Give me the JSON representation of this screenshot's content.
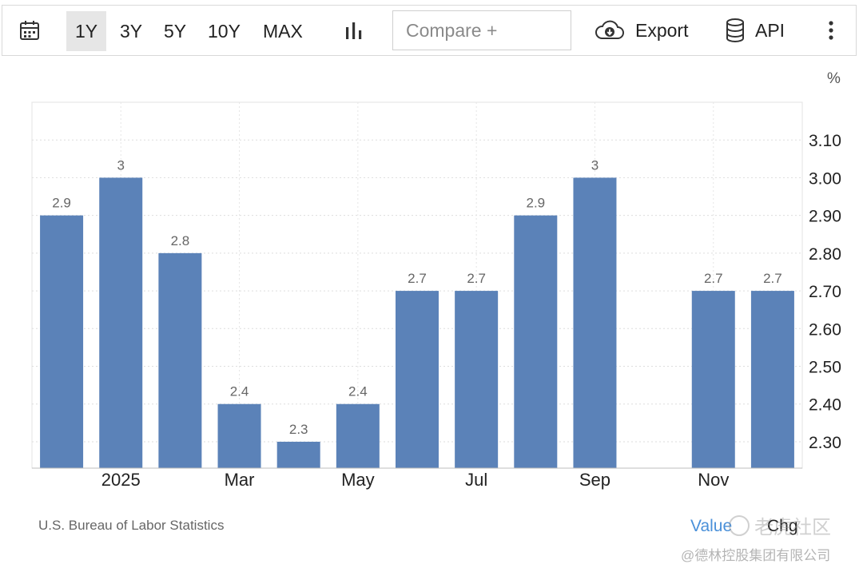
{
  "toolbar": {
    "ranges": [
      "1Y",
      "3Y",
      "5Y",
      "10Y",
      "MAX"
    ],
    "active_range": "1Y",
    "compare_placeholder": "Compare +",
    "export_label": "Export",
    "api_label": "API"
  },
  "icons": {
    "calendar": "calendar-icon",
    "chart_type": "bar-chart-icon",
    "export": "cloud-download-icon",
    "api": "database-icon",
    "more": "kebab-menu-icon"
  },
  "chart_data": {
    "type": "bar",
    "unit": "%",
    "values": [
      2.9,
      3,
      2.8,
      2.4,
      2.3,
      2.4,
      2.7,
      2.7,
      2.9,
      3,
      null,
      2.7,
      2.7
    ],
    "value_labels": [
      "2.9",
      "3",
      "2.8",
      "2.4",
      "2.3",
      "2.4",
      "2.7",
      "2.7",
      "2.9",
      "3",
      "",
      "2.7",
      "2.7"
    ],
    "x_tick_labels": [
      {
        "label": "2025",
        "index": 1
      },
      {
        "label": "Mar",
        "index": 3
      },
      {
        "label": "May",
        "index": 5
      },
      {
        "label": "Jul",
        "index": 7
      },
      {
        "label": "Sep",
        "index": 9
      },
      {
        "label": "Nov",
        "index": 11
      }
    ],
    "y_ticks": [
      "2.30",
      "2.40",
      "2.50",
      "2.60",
      "2.70",
      "2.80",
      "2.90",
      "3.00",
      "3.10"
    ],
    "ylim": [
      2.23,
      3.2
    ],
    "y_axis_position": "right",
    "grid": true,
    "bar_color": "#5b82b8",
    "source": "U.S. Bureau of Labor Statistics",
    "legend": [
      "Value",
      "Chg"
    ],
    "legend_colors": {
      "Value": "#4a90d9",
      "Chg": "#222222"
    }
  },
  "watermark": {
    "line1": "老虎社区",
    "line2": "@德林控股集团有限公司"
  }
}
